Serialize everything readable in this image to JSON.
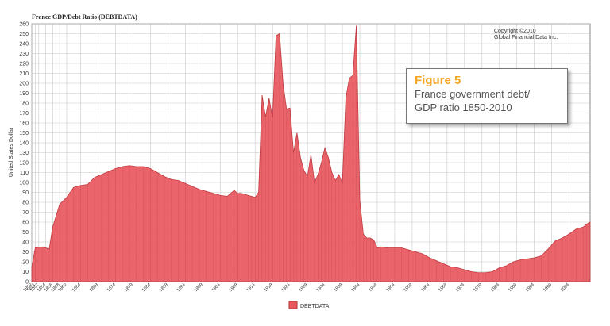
{
  "chart_data": {
    "type": "area",
    "title": "France GDP/Debt Ratio (DEBTDATA)",
    "ylabel": "United States Dollar",
    "xlabel": "",
    "ylim": [
      0,
      260
    ],
    "yticks": [
      0,
      10,
      20,
      30,
      40,
      50,
      60,
      70,
      80,
      90,
      100,
      110,
      120,
      130,
      140,
      150,
      160,
      170,
      180,
      190,
      200,
      210,
      220,
      230,
      240,
      250,
      260
    ],
    "xlim": [
      1850,
      2010
    ],
    "xtick_labels": [
      "1850",
      "1851",
      "1852",
      "1854",
      "1856",
      "1858",
      "1860",
      "1864",
      "1869",
      "1874",
      "1879",
      "1884",
      "1889",
      "1894",
      "1899",
      "1904",
      "1909",
      "1914",
      "1919",
      "1924",
      "1929",
      "1934",
      "1939",
      "1944",
      "1949",
      "1954",
      "1959",
      "1964",
      "1969",
      "1974",
      "1979",
      "1984",
      "1989",
      "1994",
      "1999",
      "2004"
    ],
    "grid": true,
    "legend": {
      "label": "DEBTDATA",
      "placement": "bottom-center"
    },
    "copyright": [
      "Copyright ©2010",
      "Global Financial Data Inc."
    ],
    "series": [
      {
        "name": "DEBTDATA",
        "color": "#e8585e",
        "x": [
          1850,
          1851,
          1853,
          1855,
          1856,
          1858,
          1860,
          1862,
          1864,
          1866,
          1868,
          1870,
          1872,
          1874,
          1876,
          1878,
          1880,
          1882,
          1884,
          1886,
          1888,
          1890,
          1892,
          1894,
          1896,
          1898,
          1900,
          1902,
          1904,
          1906,
          1908,
          1909,
          1910,
          1912,
          1913,
          1914,
          1915,
          1916,
          1917,
          1918,
          1919,
          1920,
          1921,
          1922,
          1923,
          1924,
          1925,
          1926,
          1927,
          1928,
          1929,
          1930,
          1931,
          1932,
          1933,
          1934,
          1935,
          1936,
          1937,
          1938,
          1939,
          1940,
          1941,
          1942,
          1943,
          1944,
          1945,
          1946,
          1947,
          1948,
          1949,
          1950,
          1952,
          1954,
          1956,
          1958,
          1960,
          1962,
          1964,
          1966,
          1968,
          1970,
          1972,
          1974,
          1976,
          1978,
          1980,
          1982,
          1984,
          1986,
          1988,
          1990,
          1992,
          1994,
          1996,
          1998,
          2000,
          2002,
          2004,
          2006,
          2008,
          2009,
          2010
        ],
        "values": [
          15,
          34,
          35,
          33,
          55,
          78,
          85,
          95,
          97,
          98,
          105,
          108,
          111,
          114,
          116,
          117,
          116,
          116,
          114,
          110,
          106,
          103,
          102,
          99,
          96,
          93,
          91,
          89,
          87,
          86,
          92,
          89,
          89,
          87,
          86,
          85,
          90,
          188,
          166,
          185,
          165,
          248,
          250,
          200,
          174,
          175,
          130,
          150,
          125,
          112,
          106,
          128,
          100,
          108,
          120,
          135,
          125,
          110,
          102,
          108,
          99,
          185,
          205,
          208,
          258,
          82,
          48,
          44,
          44,
          42,
          34,
          35,
          34,
          34,
          34,
          32,
          30,
          28,
          24,
          21,
          18,
          15,
          14,
          12,
          10,
          9,
          9,
          10,
          14,
          16,
          20,
          22,
          23,
          24,
          26,
          33,
          41,
          44,
          48,
          53,
          55,
          58,
          60
        ]
      }
    ]
  },
  "callout": {
    "figure_label": "Figure 5",
    "line1": "France government debt/",
    "line2": "GDP ratio 1850-2010"
  }
}
